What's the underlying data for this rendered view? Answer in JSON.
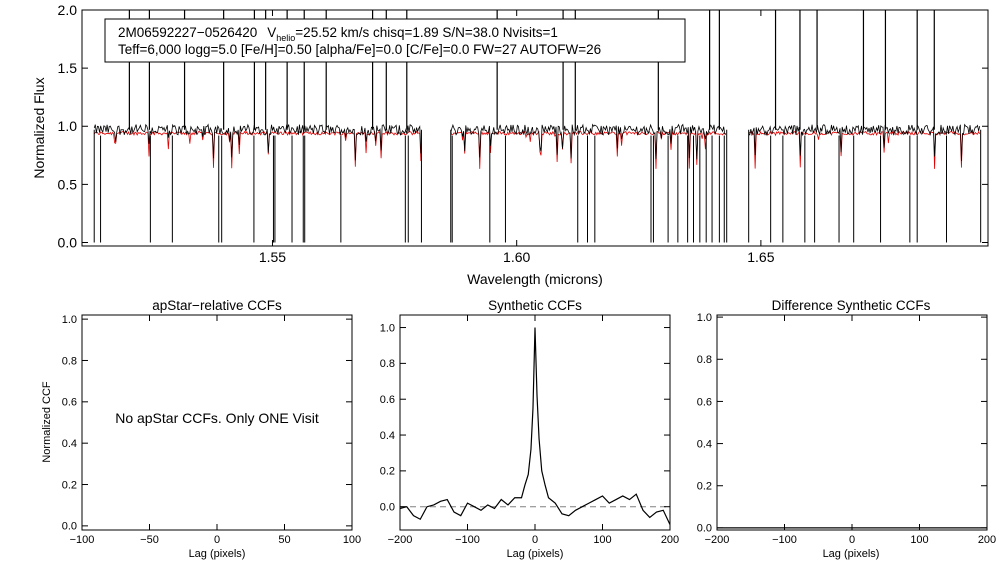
{
  "header": {
    "line1_id": "2M06592227−0526420",
    "line1_v": "V",
    "line1_v_sub": "helio",
    "line1_rest": "=25.52 km/s  chisq=1.89  S/N=38.0  Nvisits=1",
    "line2": "Teff=6,000 logg=5.0 [Fe/H]=0.50 [alpha/Fe]=0.0 [C/Fe]=0.0 FW=27 AUTOFW=26"
  },
  "no_ccf_message": "No apStar CCFs.  Only ONE Visit",
  "colors": {
    "observed": "#000000",
    "model": "#e00000",
    "zero_line": "#808080",
    "axes": "#000000"
  },
  "chart_data": [
    {
      "type": "line",
      "xlabel": "Wavelength (microns)",
      "ylabel": "Normalized Flux",
      "xlim": [
        1.511,
        1.6965
      ],
      "ylim": [
        -0.03,
        2.0
      ],
      "xticks": [
        1.55,
        1.6,
        1.65
      ],
      "xtick_labels": [
        "1.55",
        "1.60",
        "1.65"
      ],
      "yticks": [
        0.0,
        0.5,
        1.0,
        1.5,
        2.0
      ],
      "ytick_labels": [
        "0.0",
        "0.5",
        "1.0",
        "1.5",
        "2.0"
      ],
      "segments": [
        [
          1.5135,
          1.5805
        ],
        [
          1.5865,
          1.643
        ],
        [
          1.6475,
          1.695
        ]
      ],
      "series": [
        {
          "color": "observed",
          "continuum": 0.97,
          "spikes_to_top": [
            1.5207,
            1.5248,
            1.532,
            1.54,
            1.5463,
            1.5486,
            1.553,
            1.5565,
            1.561,
            1.5705,
            1.5733,
            1.5775,
            1.596,
            1.6095,
            1.612,
            1.629,
            1.6395,
            1.6415,
            1.653,
            1.658,
            1.6615,
            1.671,
            1.6755,
            1.682,
            1.6855
          ],
          "drops_to_zero": [
            1.5148,
            1.525,
            1.5295,
            1.539,
            1.5396,
            1.5462,
            1.5502,
            1.5505,
            1.554,
            1.5563,
            1.5566,
            1.564,
            1.5772,
            1.5778,
            1.5868,
            1.5945,
            1.5977,
            1.6125,
            1.6145,
            1.616,
            1.6275,
            1.628,
            1.631,
            1.633,
            1.635,
            1.6362,
            1.6375,
            1.6388,
            1.64,
            1.6415,
            1.6425,
            1.652,
            1.6545,
            1.659,
            1.661,
            1.666,
            1.669,
            1.6745,
            1.6805,
            1.682,
            1.688
          ]
        },
        {
          "color": "model",
          "continuum": 0.94
        }
      ]
    },
    {
      "type": "table",
      "title": "apStar−relative CCFs",
      "xlabel": "Lag (pixels)",
      "ylabel": "Normalized CCF",
      "xlim": [
        -100,
        100
      ],
      "ylim": [
        -0.02,
        1.02
      ],
      "xticks": [
        -100,
        -50,
        0,
        50,
        100
      ],
      "xtick_labels": [
        "−100",
        "−50",
        "0",
        "50",
        "100"
      ],
      "yticks": [
        0.0,
        0.2,
        0.4,
        0.6,
        0.8,
        1.0
      ],
      "ytick_labels": [
        "0.0",
        "0.2",
        "0.4",
        "0.6",
        "0.8",
        "1.0"
      ]
    },
    {
      "type": "line",
      "title": "Synthetic CCFs",
      "xlabel": "Lag (pixels)",
      "xlim": [
        -200,
        200
      ],
      "ylim": [
        -0.13,
        1.07
      ],
      "xticks": [
        -200,
        -100,
        0,
        100,
        200
      ],
      "xtick_labels": [
        "−200",
        "−100",
        "0",
        "100",
        "200"
      ],
      "yticks": [
        0.0,
        0.2,
        0.4,
        0.6,
        0.8,
        1.0
      ],
      "ytick_labels": [
        "0.0",
        "0.2",
        "0.4",
        "0.6",
        "0.8",
        "1.0"
      ],
      "zero_line": 0.0,
      "x": [
        -200,
        -190,
        -180,
        -170,
        -160,
        -150,
        -140,
        -130,
        -120,
        -110,
        -100,
        -90,
        -80,
        -70,
        -60,
        -50,
        -40,
        -30,
        -20,
        -15,
        -10,
        -6,
        -3,
        0,
        3,
        6,
        10,
        15,
        20,
        30,
        40,
        50,
        60,
        70,
        80,
        90,
        100,
        110,
        120,
        130,
        140,
        150,
        160,
        170,
        180,
        190,
        200
      ],
      "y": [
        -0.01,
        0.0,
        -0.05,
        -0.07,
        0.0,
        0.01,
        0.03,
        0.04,
        -0.03,
        -0.05,
        0.02,
        0.0,
        -0.02,
        0.01,
        -0.01,
        0.04,
        0.01,
        0.05,
        0.05,
        0.12,
        0.18,
        0.32,
        0.55,
        1.0,
        0.62,
        0.38,
        0.2,
        0.12,
        0.05,
        0.02,
        -0.04,
        -0.05,
        -0.02,
        0.0,
        0.02,
        0.04,
        0.06,
        0.02,
        0.04,
        0.06,
        0.04,
        0.07,
        -0.02,
        -0.06,
        -0.03,
        -0.02,
        -0.1
      ]
    },
    {
      "type": "line",
      "title": "Difference Synthetic CCFs",
      "xlabel": "Lag (pixels)",
      "xlim": [
        -200,
        200
      ],
      "ylim": [
        -0.01,
        1.01
      ],
      "xticks": [
        -200,
        -100,
        0,
        100,
        200
      ],
      "xtick_labels": [
        "−200",
        "−100",
        "0",
        "100",
        "200"
      ],
      "yticks": [
        0.0,
        0.2,
        0.4,
        0.6,
        0.8,
        1.0
      ],
      "ytick_labels": [
        "0.0",
        "0.2",
        "0.4",
        "0.6",
        "0.8",
        "1.0"
      ],
      "x": [
        -200,
        200
      ],
      "y": [
        0.0,
        0.0
      ]
    }
  ]
}
